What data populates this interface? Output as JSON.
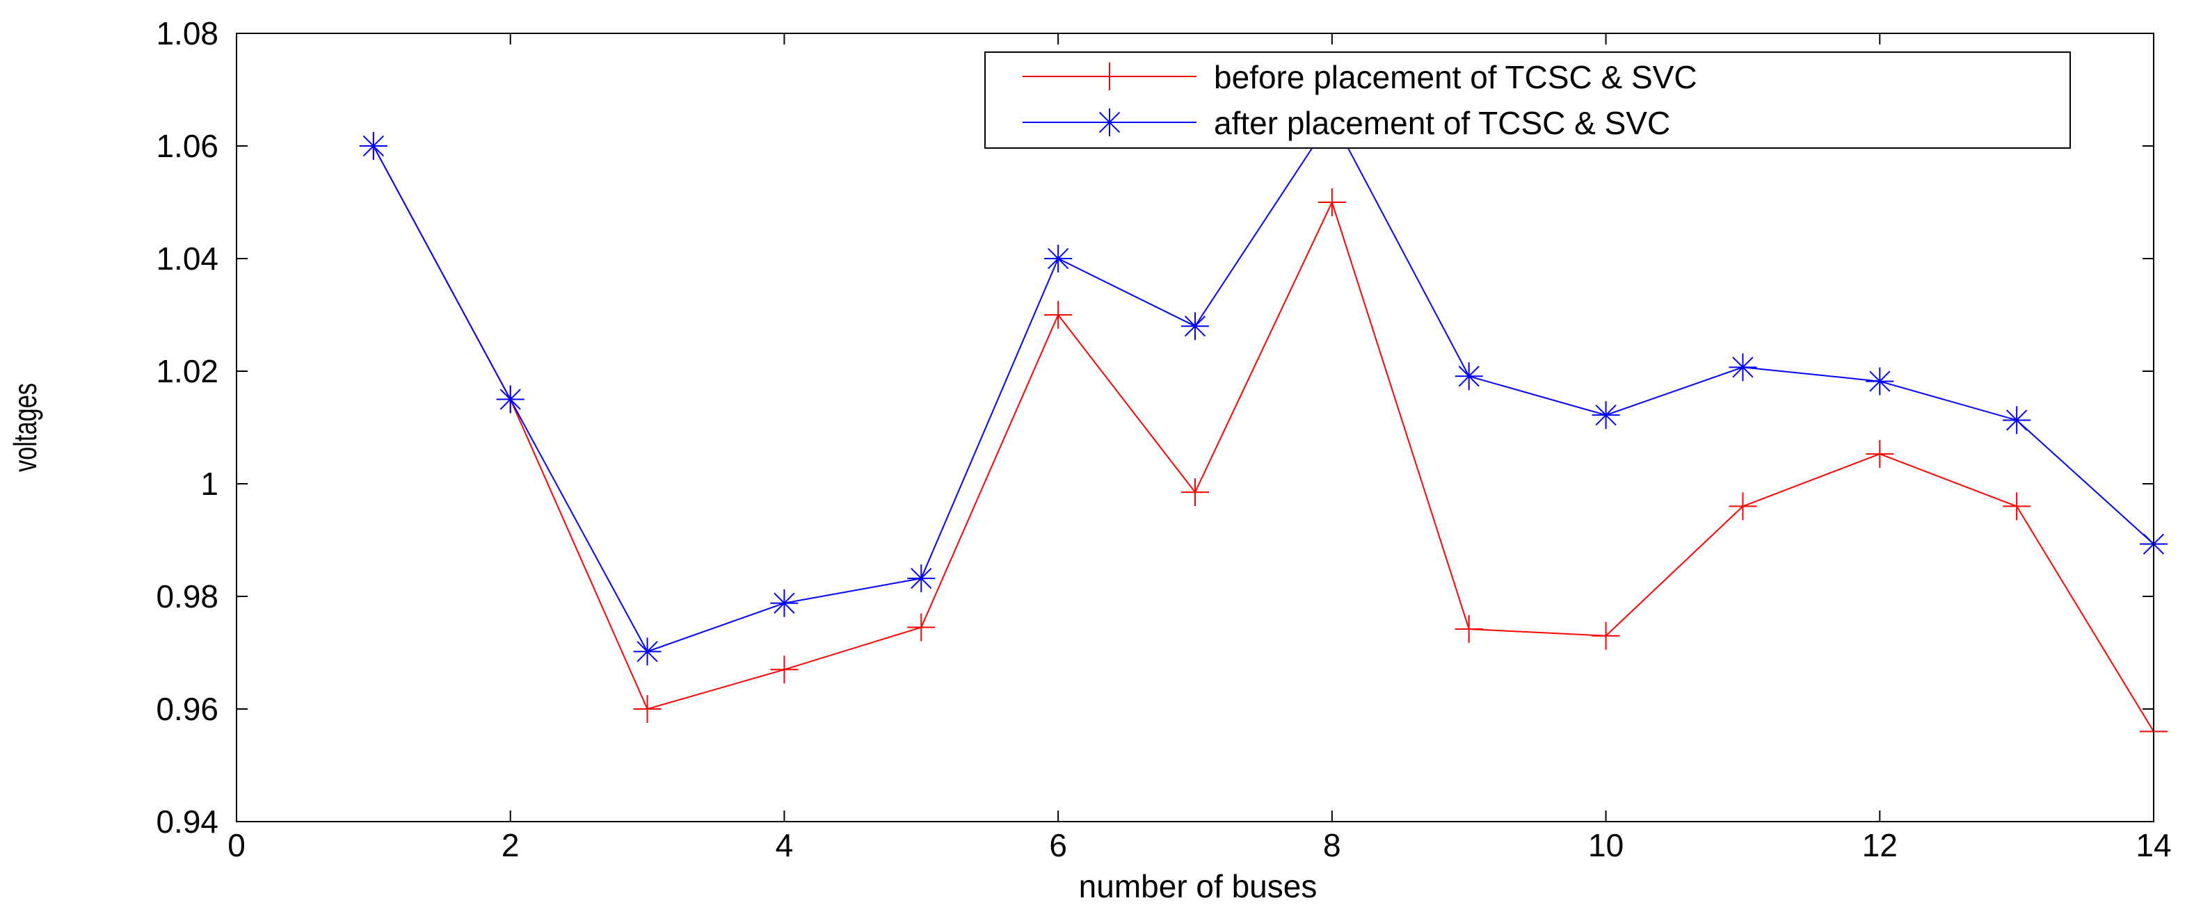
{
  "chart_data": {
    "type": "line",
    "title": "",
    "xlabel": "number of buses",
    "ylabel": "voltages",
    "xlim": [
      0,
      14
    ],
    "ylim": [
      0.94,
      1.08
    ],
    "xticks": [
      0,
      2,
      4,
      6,
      8,
      10,
      12,
      14
    ],
    "xtick_labels": [
      "0",
      "2",
      "4",
      "6",
      "8",
      "10",
      "12",
      "14"
    ],
    "yticks": [
      0.94,
      0.96,
      0.98,
      1.0,
      1.02,
      1.04,
      1.06,
      1.08
    ],
    "ytick_labels": [
      "0.94",
      "0.96",
      "0.98",
      "1",
      "1.02",
      "1.04",
      "1.06",
      "1.08"
    ],
    "grid": false,
    "legend_position": "top-right",
    "x": [
      1,
      2,
      3,
      4,
      5,
      6,
      7,
      8,
      9,
      10,
      11,
      12,
      13,
      14
    ],
    "series": [
      {
        "name": "before placement of TCSC & SVC",
        "color": "#ff0000",
        "marker": "plus",
        "values": [
          1.06,
          1.015,
          0.96,
          0.967,
          0.9745,
          1.03,
          0.9985,
          1.05,
          0.9742,
          0.973,
          0.996,
          1.0053,
          0.996,
          0.956
        ]
      },
      {
        "name": "after placement of TCSC & SVC",
        "color": "#0000ff",
        "marker": "asterisk",
        "values": [
          1.06,
          1.015,
          0.9702,
          0.9788,
          0.9832,
          1.04,
          1.028,
          1.065,
          1.0191,
          1.0122,
          1.0207,
          1.0182,
          1.0113,
          0.9893
        ]
      }
    ]
  }
}
